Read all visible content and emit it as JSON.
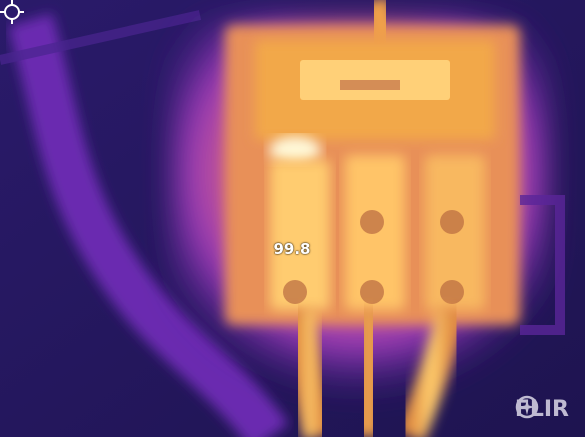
{
  "thermal_image": {
    "spot_temperature": "99.8",
    "brand_logo": "FLIR",
    "palette": {
      "cold": "#1e1450",
      "cool": "#3a1e8a",
      "mid": "#8a2fc0",
      "warm": "#d85a8a",
      "hot": "#f5a030",
      "hottest": "#fff2b0"
    }
  }
}
